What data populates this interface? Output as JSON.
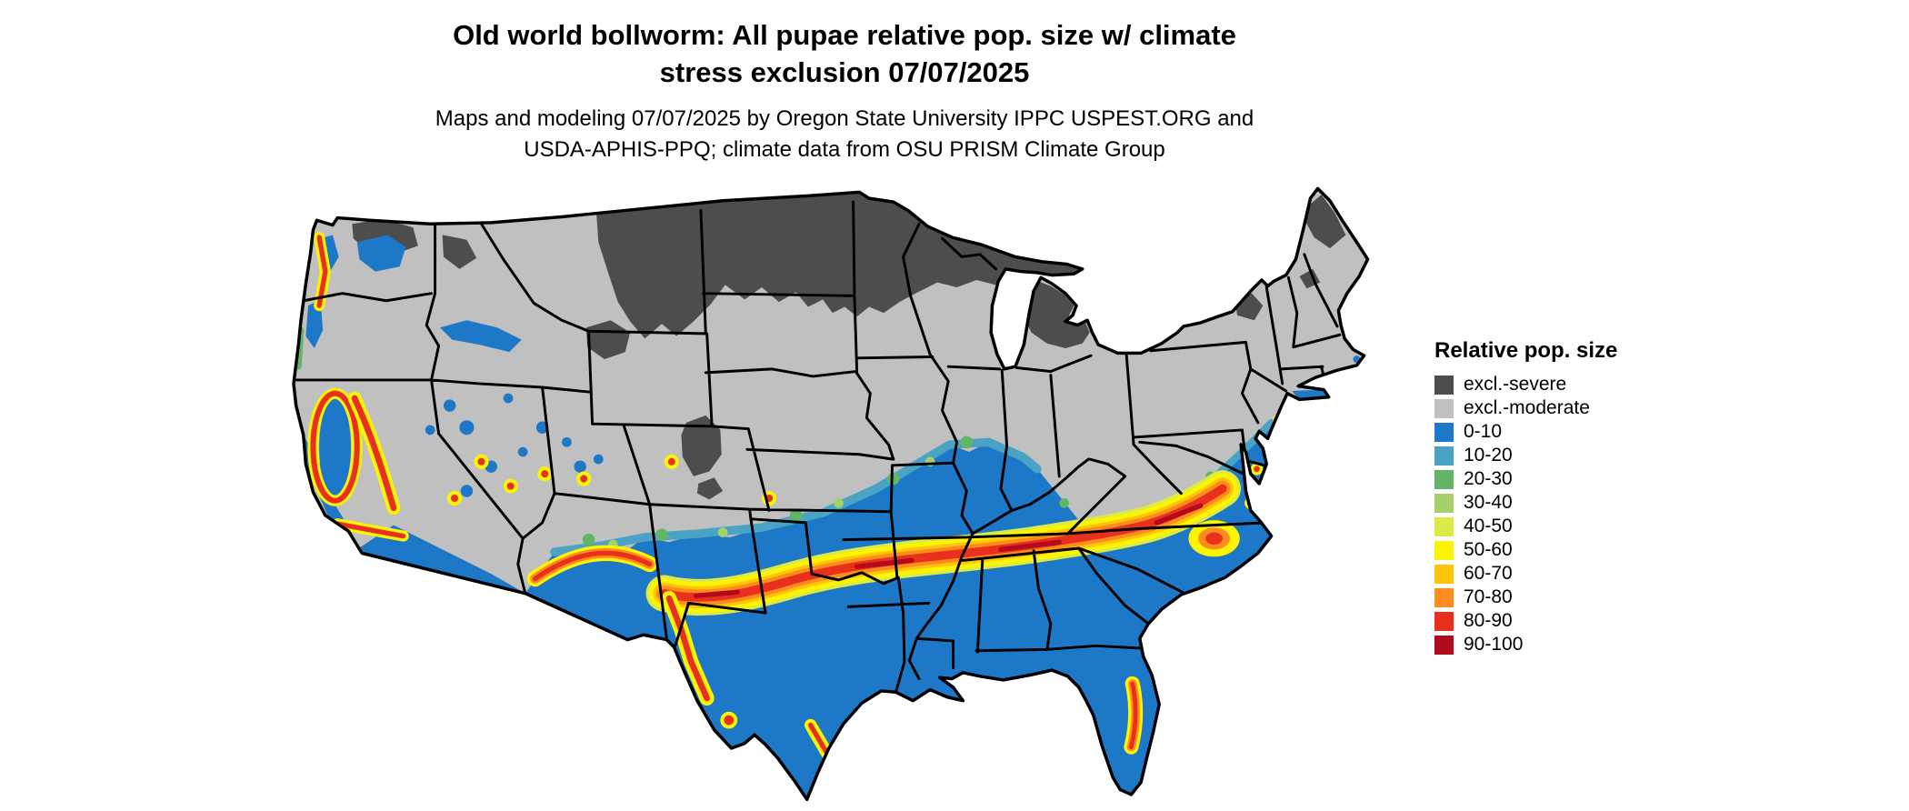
{
  "title": {
    "line1": "Old world bollworm: All pupae relative pop. size w/ climate",
    "line2": "stress exclusion 07/07/2025"
  },
  "subtitle": {
    "line1": "Maps and modeling 07/07/2025 by Oregon State University IPPC USPEST.ORG and",
    "line2": "USDA-APHIS-PPQ; climate data from OSU PRISM Climate Group"
  },
  "legend": {
    "title": "Relative pop. size",
    "items": [
      {
        "label": "excl.-severe",
        "color": "#4d4d4d"
      },
      {
        "label": "excl.-moderate",
        "color": "#c0c0c0"
      },
      {
        "label": "0-10",
        "color": "#1e78c8"
      },
      {
        "label": "10-20",
        "color": "#4aa3c4"
      },
      {
        "label": "20-30",
        "color": "#62b567"
      },
      {
        "label": "30-40",
        "color": "#a5d06a"
      },
      {
        "label": "40-50",
        "color": "#dcea45"
      },
      {
        "label": "50-60",
        "color": "#fdf403"
      },
      {
        "label": "60-70",
        "color": "#fdc50a"
      },
      {
        "label": "70-80",
        "color": "#fd8c1e"
      },
      {
        "label": "80-90",
        "color": "#e8301c"
      },
      {
        "label": "90-100",
        "color": "#b30b1e"
      }
    ]
  }
}
